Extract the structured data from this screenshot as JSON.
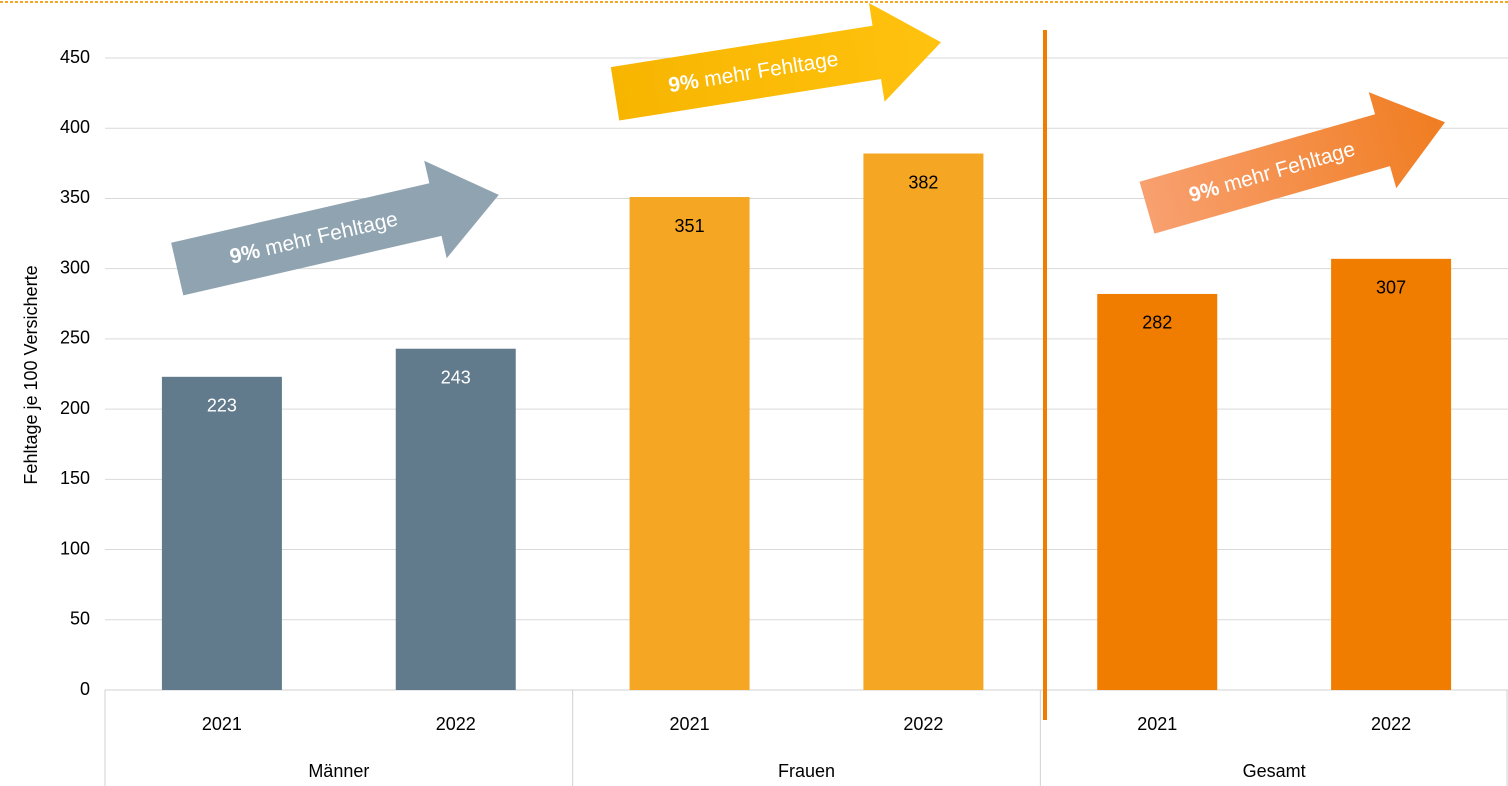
{
  "chart_data": {
    "type": "bar",
    "y_label": "Fehltage je 100 Versicherte",
    "ylim": [
      0,
      450
    ],
    "yticks": [
      0,
      50,
      100,
      150,
      200,
      250,
      300,
      350,
      400,
      450
    ],
    "grid": true,
    "groups": [
      {
        "name": "Männer",
        "color": "#627b8c",
        "label_color": "#ffffff",
        "categories": [
          "2021",
          "2022"
        ],
        "values": [
          223,
          243
        ]
      },
      {
        "name": "Frauen",
        "color": "#f5a623",
        "label_color": "#000000",
        "categories": [
          "2021",
          "2022"
        ],
        "values": [
          351,
          382
        ]
      },
      {
        "name": "Gesamt",
        "color": "#f07d00",
        "label_color": "#000000",
        "categories": [
          "2021",
          "2022"
        ],
        "values": [
          282,
          307
        ]
      }
    ],
    "annotations": [
      {
        "bold": "9%",
        "text": "mehr Fehltage"
      },
      {
        "bold": "9%",
        "text": "mehr Fehltage"
      },
      {
        "bold": "9%",
        "text": "mehr Fehltage"
      }
    ]
  }
}
